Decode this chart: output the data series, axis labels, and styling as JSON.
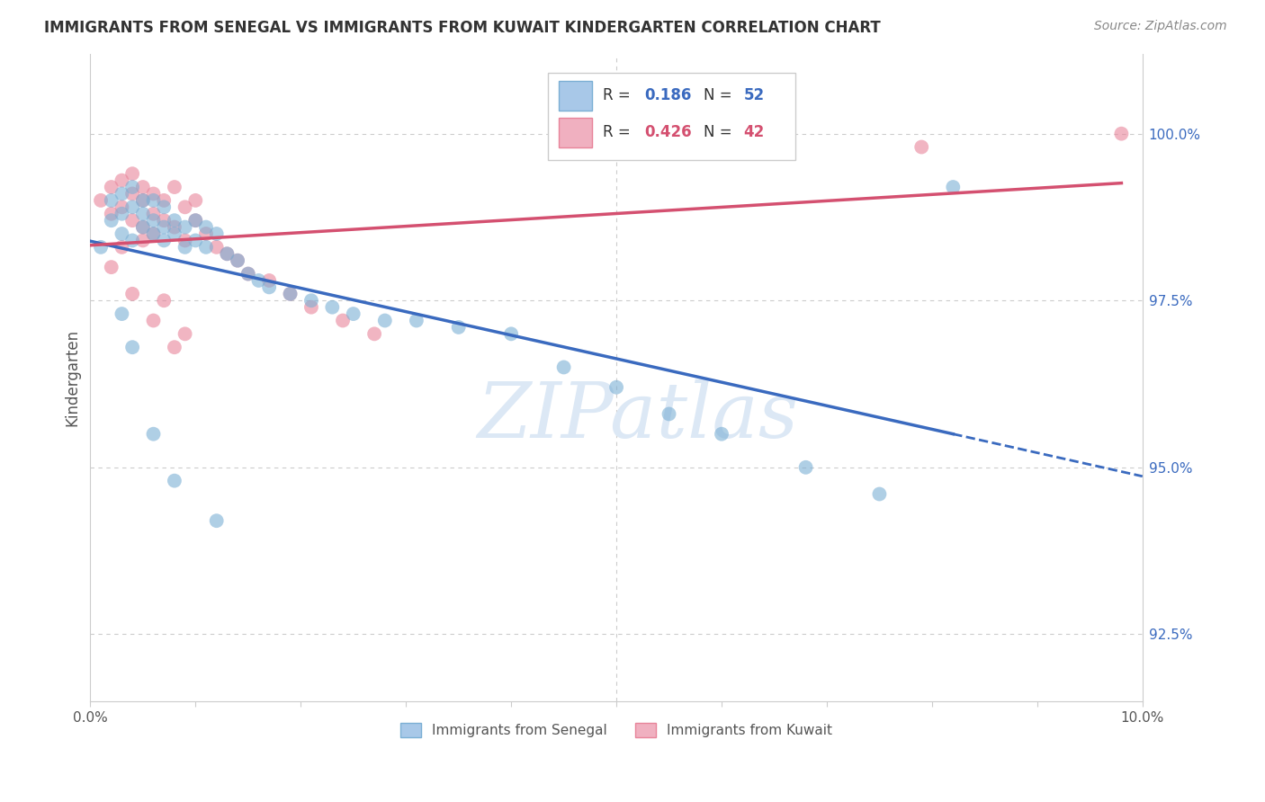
{
  "title": "IMMIGRANTS FROM SENEGAL VS IMMIGRANTS FROM KUWAIT KINDERGARTEN CORRELATION CHART",
  "source": "Source: ZipAtlas.com",
  "ylabel": "Kindergarten",
  "yticks": [
    92.5,
    95.0,
    97.5,
    100.0
  ],
  "xlim": [
    0.0,
    0.1
  ],
  "ylim": [
    91.5,
    101.2
  ],
  "legend_entry1_R": "0.186",
  "legend_entry1_N": "52",
  "legend_entry2_R": "0.426",
  "legend_entry2_N": "42",
  "background_color": "#ffffff",
  "grid_color": "#cccccc",
  "senegal_color": "#7bafd4",
  "kuwait_color": "#e8849a",
  "trendline_senegal_color": "#3a6abf",
  "trendline_kuwait_color": "#d45070",
  "watermark_color": "#dce8f5",
  "senegal_x": [
    0.001,
    0.002,
    0.002,
    0.003,
    0.003,
    0.003,
    0.004,
    0.004,
    0.004,
    0.005,
    0.005,
    0.005,
    0.006,
    0.006,
    0.006,
    0.007,
    0.007,
    0.007,
    0.008,
    0.008,
    0.009,
    0.009,
    0.01,
    0.01,
    0.011,
    0.011,
    0.012,
    0.013,
    0.014,
    0.015,
    0.016,
    0.017,
    0.019,
    0.021,
    0.023,
    0.025,
    0.028,
    0.031,
    0.035,
    0.04,
    0.045,
    0.05,
    0.055,
    0.06,
    0.068,
    0.075,
    0.003,
    0.004,
    0.006,
    0.008,
    0.012,
    0.082
  ],
  "senegal_y": [
    98.3,
    98.7,
    99.0,
    98.5,
    98.8,
    99.1,
    98.4,
    98.9,
    99.2,
    98.6,
    98.8,
    99.0,
    98.5,
    98.7,
    99.0,
    98.4,
    98.6,
    98.9,
    98.5,
    98.7,
    98.3,
    98.6,
    98.4,
    98.7,
    98.3,
    98.6,
    98.5,
    98.2,
    98.1,
    97.9,
    97.8,
    97.7,
    97.6,
    97.5,
    97.4,
    97.3,
    97.2,
    97.2,
    97.1,
    97.0,
    96.5,
    96.2,
    95.8,
    95.5,
    95.0,
    94.6,
    97.3,
    96.8,
    95.5,
    94.8,
    94.2,
    99.2
  ],
  "kuwait_x": [
    0.001,
    0.002,
    0.002,
    0.003,
    0.003,
    0.004,
    0.004,
    0.004,
    0.005,
    0.005,
    0.005,
    0.006,
    0.006,
    0.006,
    0.007,
    0.007,
    0.008,
    0.008,
    0.009,
    0.009,
    0.01,
    0.01,
    0.011,
    0.012,
    0.013,
    0.014,
    0.015,
    0.017,
    0.019,
    0.021,
    0.024,
    0.027,
    0.002,
    0.003,
    0.004,
    0.006,
    0.008,
    0.005,
    0.007,
    0.009,
    0.079,
    0.098
  ],
  "kuwait_y": [
    99.0,
    99.2,
    98.8,
    99.3,
    98.9,
    99.1,
    98.7,
    99.4,
    99.0,
    98.6,
    99.2,
    98.8,
    99.1,
    98.5,
    99.0,
    98.7,
    99.2,
    98.6,
    98.9,
    98.4,
    99.0,
    98.7,
    98.5,
    98.3,
    98.2,
    98.1,
    97.9,
    97.8,
    97.6,
    97.4,
    97.2,
    97.0,
    98.0,
    98.3,
    97.6,
    97.2,
    96.8,
    98.4,
    97.5,
    97.0,
    99.8,
    100.0
  ]
}
